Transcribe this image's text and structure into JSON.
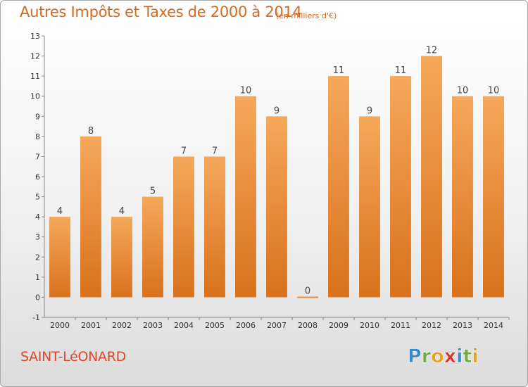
{
  "title": "Autres Impôts et Taxes de 2000 à 2014",
  "subtitle": "(en milliers d'€)",
  "commune": "SAINT-LéONARD",
  "logo": {
    "letters": [
      "P",
      "r",
      "o",
      "x",
      "i",
      "t",
      "i"
    ],
    "colors": [
      "#3b87c9",
      "#6cab3c",
      "#e6a11f",
      "#d9352b",
      "#3b87c9",
      "#6cab3c",
      "#e6a11f"
    ]
  },
  "colors": {
    "bar_top": "#f5a85a",
    "bar_bottom": "#d9711b",
    "title": "#d86a1e",
    "commune": "#d84a2a"
  },
  "chart_data": {
    "type": "bar",
    "categories": [
      "2000",
      "2001",
      "2002",
      "2003",
      "2004",
      "2005",
      "2006",
      "2007",
      "2008",
      "2009",
      "2010",
      "2011",
      "2012",
      "2013",
      "2014"
    ],
    "values": [
      4,
      8,
      4,
      5,
      7,
      7,
      10,
      9,
      0,
      11,
      9,
      11,
      12,
      10,
      10
    ],
    "y_ticks": [
      "-1",
      "0",
      "1",
      "2",
      "3",
      "4",
      "5",
      "6",
      "7",
      "8",
      "9",
      "10",
      "11",
      "12",
      "13"
    ],
    "ylim": [
      -1,
      13
    ],
    "grid": false,
    "legend": "none"
  }
}
